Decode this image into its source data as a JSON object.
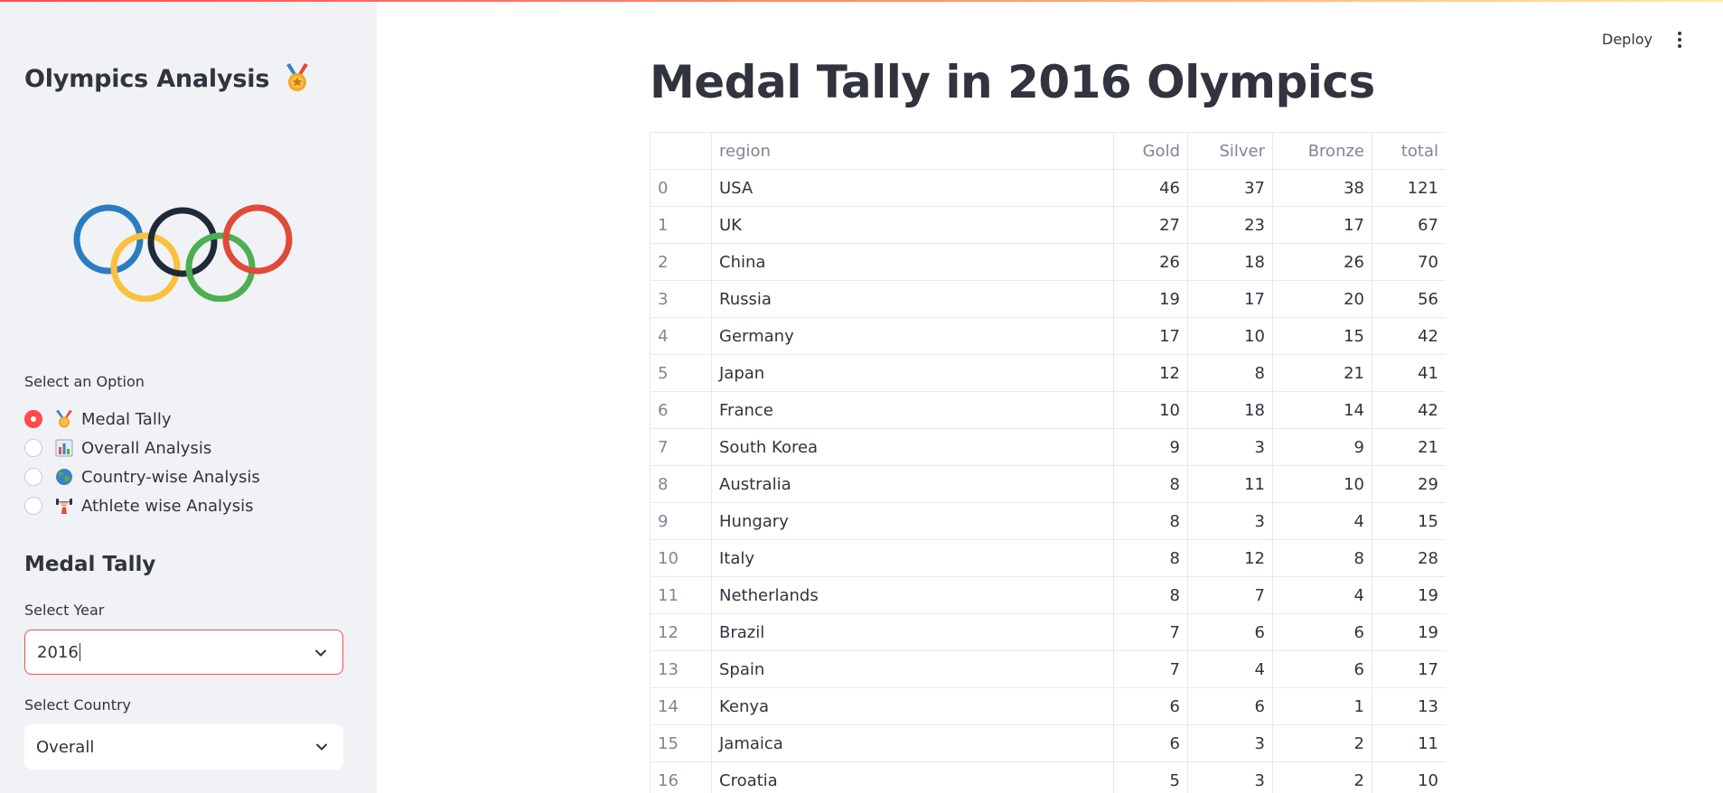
{
  "sidebar": {
    "app_title": "Olympics Analysis",
    "option_label": "Select an Option",
    "options": [
      {
        "label": "Medal Tally",
        "icon": "medal-icon",
        "selected": true
      },
      {
        "label": "Overall Analysis",
        "icon": "bar-chart-icon",
        "selected": false
      },
      {
        "label": "Country-wise Analysis",
        "icon": "globe-icon",
        "selected": false
      },
      {
        "label": "Athlete wise Analysis",
        "icon": "weightlifter-icon",
        "selected": false
      }
    ],
    "section_title": "Medal Tally",
    "year_label": "Select Year",
    "year_value": "2016",
    "country_label": "Select Country",
    "country_value": "Overall"
  },
  "header": {
    "deploy_label": "Deploy"
  },
  "main": {
    "title": "Medal Tally in 2016 Olympics",
    "table": {
      "columns": [
        "",
        "region",
        "Gold",
        "Silver",
        "Bronze",
        "total"
      ],
      "rows": [
        [
          "0",
          "USA",
          "46",
          "37",
          "38",
          "121"
        ],
        [
          "1",
          "UK",
          "27",
          "23",
          "17",
          "67"
        ],
        [
          "2",
          "China",
          "26",
          "18",
          "26",
          "70"
        ],
        [
          "3",
          "Russia",
          "19",
          "17",
          "20",
          "56"
        ],
        [
          "4",
          "Germany",
          "17",
          "10",
          "15",
          "42"
        ],
        [
          "5",
          "Japan",
          "12",
          "8",
          "21",
          "41"
        ],
        [
          "6",
          "France",
          "10",
          "18",
          "14",
          "42"
        ],
        [
          "7",
          "South Korea",
          "9",
          "3",
          "9",
          "21"
        ],
        [
          "8",
          "Australia",
          "8",
          "11",
          "10",
          "29"
        ],
        [
          "9",
          "Hungary",
          "8",
          "3",
          "4",
          "15"
        ],
        [
          "10",
          "Italy",
          "8",
          "12",
          "8",
          "28"
        ],
        [
          "11",
          "Netherlands",
          "8",
          "7",
          "4",
          "19"
        ],
        [
          "12",
          "Brazil",
          "7",
          "6",
          "6",
          "19"
        ],
        [
          "13",
          "Spain",
          "7",
          "4",
          "6",
          "17"
        ],
        [
          "14",
          "Kenya",
          "6",
          "6",
          "1",
          "13"
        ],
        [
          "15",
          "Jamaica",
          "6",
          "3",
          "2",
          "11"
        ],
        [
          "16",
          "Croatia",
          "5",
          "3",
          "2",
          "10"
        ]
      ]
    }
  },
  "colors": {
    "accent": "#ff4b4b",
    "sidebar_bg": "#f0f2f6",
    "text": "#31333f",
    "muted": "#808495",
    "ring_blue": "#2a7dc0",
    "ring_black": "#1e2a3a",
    "ring_red": "#e04a38",
    "ring_yellow": "#fbc13c",
    "ring_green": "#4caf50"
  }
}
